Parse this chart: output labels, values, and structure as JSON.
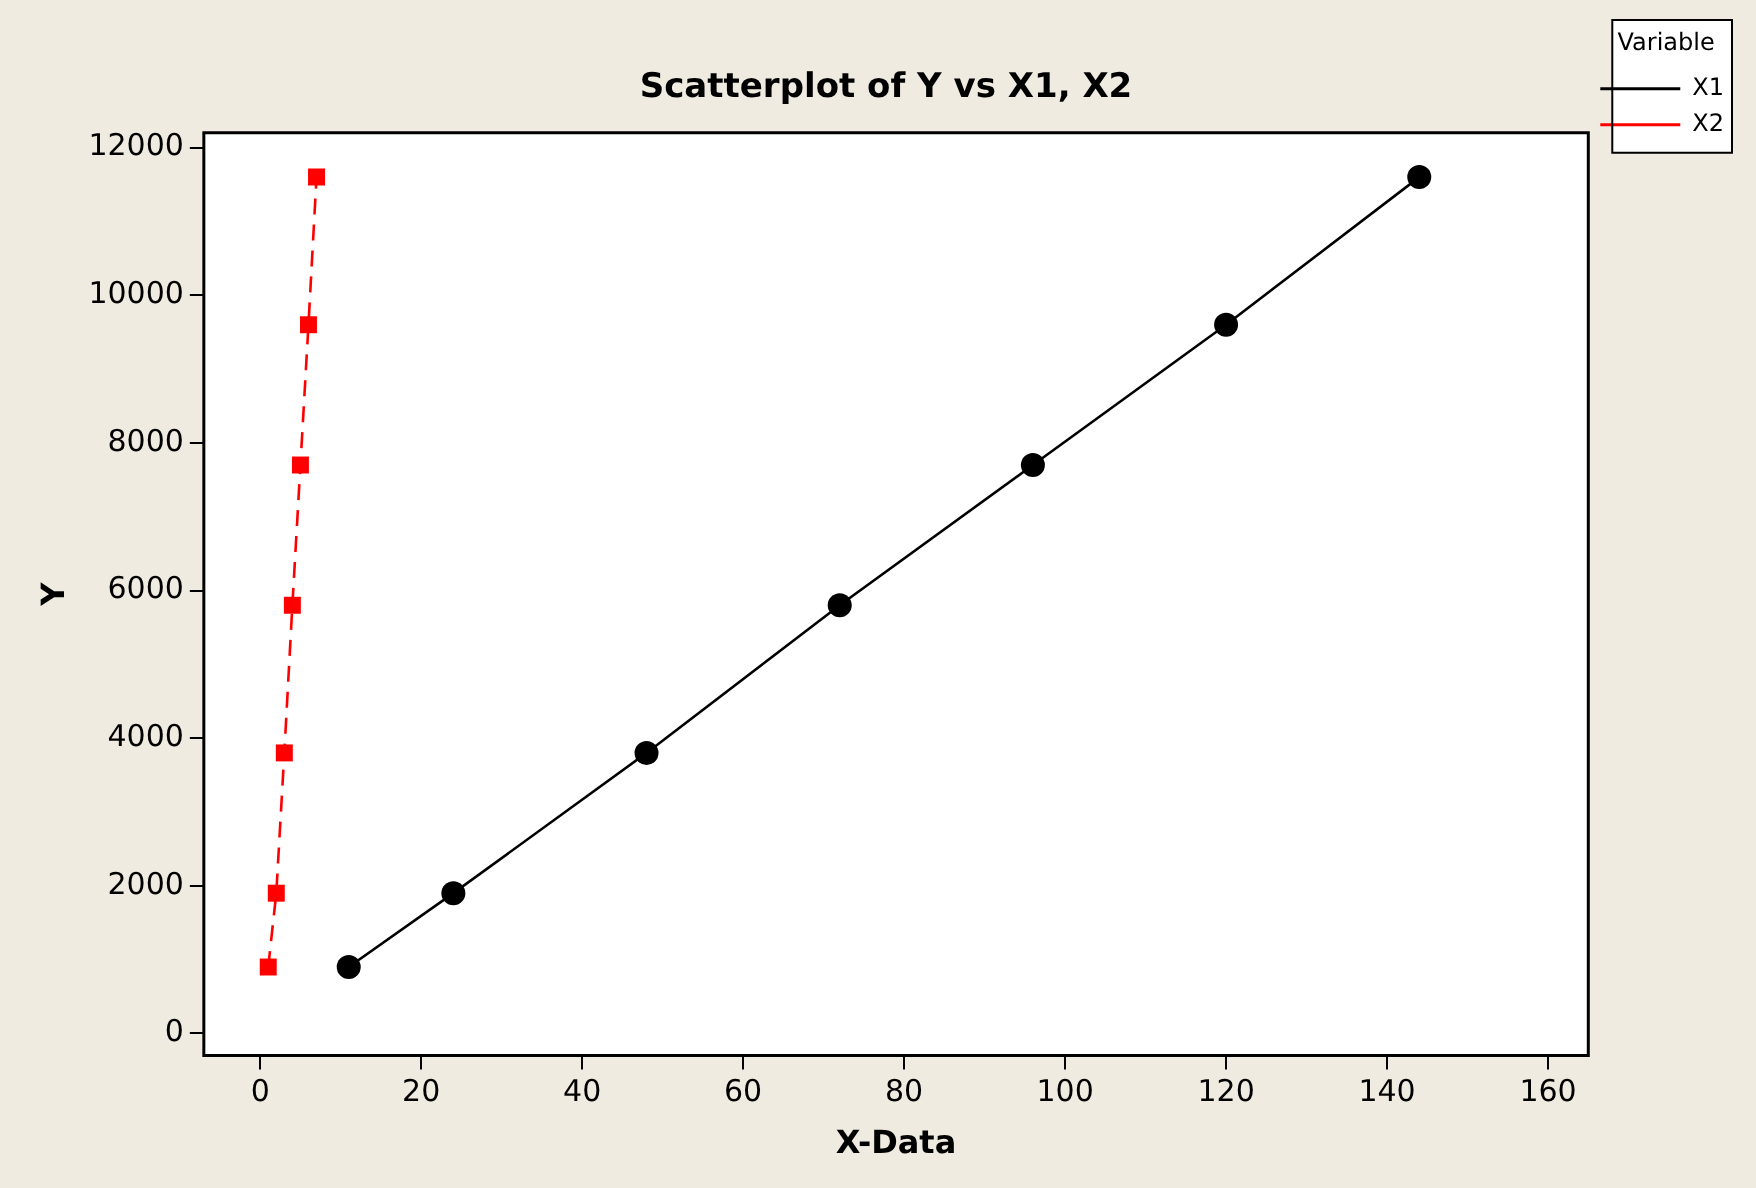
{
  "chart_data": {
    "type": "line",
    "title": "Scatterplot of Y vs X1, X2",
    "xlabel": "X-Data",
    "ylabel": "Y",
    "legend_title": "Variable",
    "legend": "right",
    "xlim": [
      -7,
      165
    ],
    "xticks": [
      0,
      20,
      40,
      60,
      80,
      100,
      120,
      140,
      160
    ],
    "ylim": [
      -300,
      12200
    ],
    "yticks": [
      0,
      2000,
      4000,
      6000,
      8000,
      10000,
      12000
    ],
    "grid": false,
    "series": [
      {
        "name": "X1",
        "color": "#000000",
        "marker": "circle",
        "line_style": "solid",
        "x": [
          11,
          24,
          48,
          72,
          96,
          120,
          144
        ],
        "values": [
          900,
          1900,
          3800,
          5800,
          7700,
          9600,
          11600
        ]
      },
      {
        "name": "X2",
        "color": "#ff0000",
        "marker": "square",
        "line_style": "dashed",
        "x": [
          1,
          2,
          3,
          4,
          5,
          6,
          7
        ],
        "values": [
          900,
          1900,
          3800,
          5800,
          7700,
          9600,
          11600
        ]
      }
    ]
  }
}
